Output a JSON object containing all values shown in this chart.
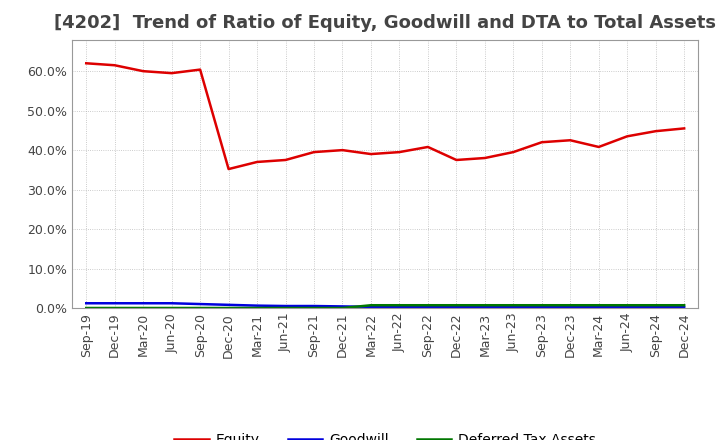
{
  "title": "[4202]  Trend of Ratio of Equity, Goodwill and DTA to Total Assets",
  "x_labels": [
    "Sep-19",
    "Dec-19",
    "Mar-20",
    "Jun-20",
    "Sep-20",
    "Dec-20",
    "Mar-21",
    "Jun-21",
    "Sep-21",
    "Dec-21",
    "Mar-22",
    "Jun-22",
    "Sep-22",
    "Dec-22",
    "Mar-23",
    "Jun-23",
    "Sep-23",
    "Dec-23",
    "Mar-24",
    "Jun-24",
    "Sep-24",
    "Dec-24"
  ],
  "equity": [
    0.62,
    0.615,
    0.6,
    0.595,
    0.604,
    0.352,
    0.37,
    0.375,
    0.395,
    0.4,
    0.39,
    0.395,
    0.408,
    0.375,
    0.38,
    0.395,
    0.42,
    0.425,
    0.408,
    0.435,
    0.448,
    0.455
  ],
  "goodwill": [
    0.012,
    0.012,
    0.012,
    0.012,
    0.01,
    0.008,
    0.006,
    0.005,
    0.005,
    0.004,
    0.003,
    0.003,
    0.003,
    0.002,
    0.002,
    0.002,
    0.002,
    0.002,
    0.002,
    0.002,
    0.002,
    0.002
  ],
  "dta": [
    0.0,
    0.0,
    0.0,
    0.0,
    0.0,
    0.0,
    0.0,
    0.0,
    0.0,
    0.0,
    0.007,
    0.007,
    0.007,
    0.007,
    0.007,
    0.007,
    0.007,
    0.007,
    0.007,
    0.007,
    0.007,
    0.007
  ],
  "equity_color": "#dd0000",
  "goodwill_color": "#0000dd",
  "dta_color": "#007700",
  "bg_color": "#ffffff",
  "plot_bg_color": "#ffffff",
  "grid_color": "#aaaaaa",
  "title_color": "#444444",
  "ylim": [
    0.0,
    0.68
  ],
  "yticks": [
    0.0,
    0.1,
    0.2,
    0.3,
    0.4,
    0.5,
    0.6
  ],
  "line_width": 1.8,
  "title_fontsize": 13,
  "tick_fontsize": 9,
  "legend_fontsize": 10
}
